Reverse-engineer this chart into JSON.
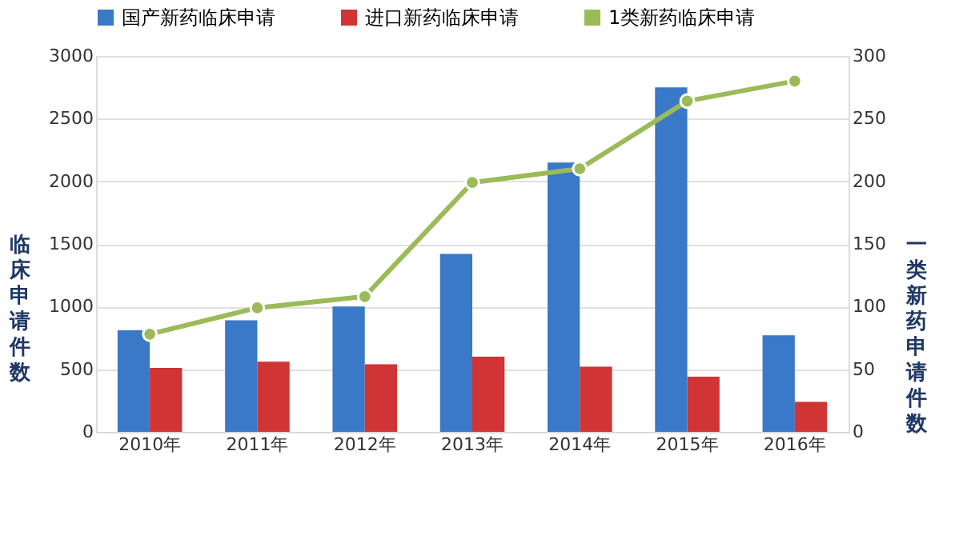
{
  "chart_data": {
    "type": "bar",
    "categories": [
      "2010年",
      "2011年",
      "2012年",
      "2013年",
      "2014年",
      "2015年",
      "2016年"
    ],
    "series": [
      {
        "name": "国产新药临床申请",
        "color": "#3a78c8",
        "values": [
          810,
          890,
          1000,
          1420,
          2150,
          2750,
          770
        ]
      },
      {
        "name": "进口新药临床申请",
        "color": "#d03434",
        "values": [
          510,
          560,
          540,
          600,
          520,
          440,
          240
        ]
      },
      {
        "name": "1类新药临床申请",
        "color": "#9bbb59",
        "type": "line",
        "axis": "y2",
        "marker": "circle",
        "values": [
          78,
          99,
          108,
          199,
          210,
          264,
          280
        ]
      }
    ],
    "ylabel": "临床申请件数",
    "y2label": "一类新药申请件数",
    "ylim": [
      0,
      3000
    ],
    "yticks": [
      0,
      500,
      1000,
      1500,
      2000,
      2500,
      3000
    ],
    "y2lim": [
      0,
      300
    ],
    "y2ticks": [
      0,
      50,
      100,
      150,
      200,
      250,
      300
    ],
    "grid": "y",
    "legend": "top"
  }
}
